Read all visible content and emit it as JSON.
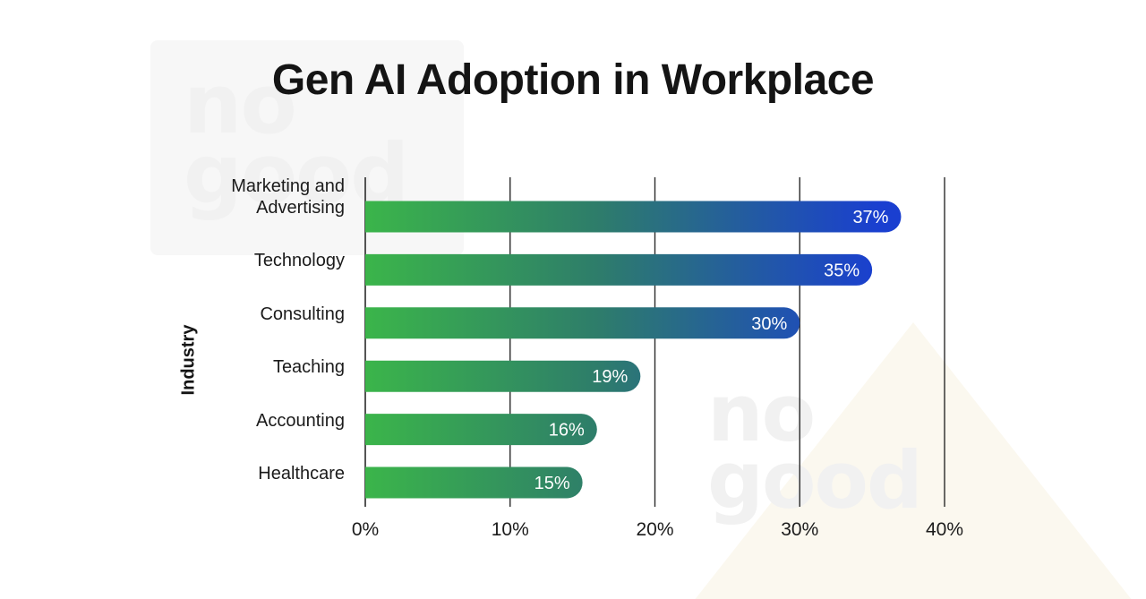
{
  "chart_data": {
    "type": "bar",
    "orientation": "horizontal",
    "title": "Gen AI Adoption in Workplace",
    "ylabel": "Industry",
    "xlabel": "",
    "categories": [
      "Marketing and\nAdvertising",
      "Technology",
      "Consulting",
      "Teaching",
      "Accounting",
      "Healthcare"
    ],
    "values": [
      37,
      35,
      30,
      19,
      16,
      15
    ],
    "value_labels": [
      "37%",
      "35%",
      "30%",
      "19%",
      "16%",
      "15%"
    ],
    "xlim": [
      0,
      40
    ],
    "xticks": [
      0,
      10,
      20,
      30,
      40
    ],
    "xtick_labels": [
      "0%",
      "10%",
      "20%",
      "30%",
      "40%"
    ],
    "grid": "vertical",
    "colors": {
      "bar_start": "#3bb54a",
      "bar_mid": "#2e7d6a",
      "bar_end": "#1a3fd0",
      "grid": "#2a2a2a",
      "title": "#141414",
      "label_text": "#ffffff"
    }
  },
  "watermark": {
    "text_1": "no\ngood",
    "text_2": "no\ngood"
  }
}
